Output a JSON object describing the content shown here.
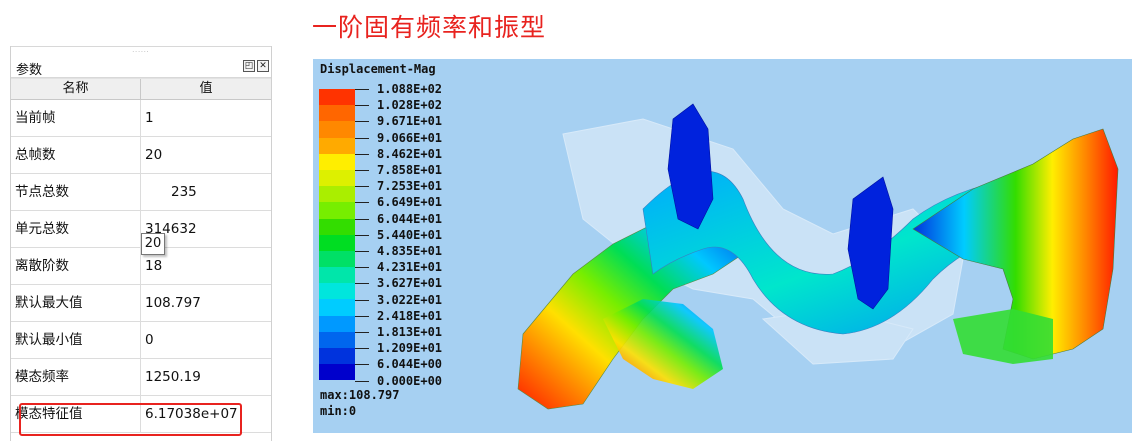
{
  "title": "一阶固有频率和振型",
  "panel": {
    "title": "参数",
    "grip": "......",
    "buttons": [
      "◰",
      "✕"
    ],
    "headers": [
      "名称",
      "值"
    ],
    "rows": [
      {
        "name": "当前帧",
        "value": "1"
      },
      {
        "name": "总帧数",
        "value": "20"
      },
      {
        "name": "节点总数",
        "value": "235"
      },
      {
        "name": "单元总数",
        "value": "314632"
      },
      {
        "name": "离散阶数",
        "value": "18"
      },
      {
        "name": "默认最大值",
        "value": "108.797"
      },
      {
        "name": "默认最小值",
        "value": "0"
      },
      {
        "name": "模态频率",
        "value": "1250.19"
      },
      {
        "name": "模态特征值",
        "value": "6.17038e+07"
      }
    ],
    "tooltip": "20",
    "highlighted_row": "模态频率"
  },
  "viz": {
    "legend_title": "Displacement-Mag",
    "legend_labels": [
      "1.088E+02",
      "1.028E+02",
      "9.671E+01",
      "9.066E+01",
      "8.462E+01",
      "7.858E+01",
      "7.253E+01",
      "6.649E+01",
      "6.044E+01",
      "5.440E+01",
      "4.835E+01",
      "4.231E+01",
      "3.627E+01",
      "3.022E+01",
      "2.418E+01",
      "1.813E+01",
      "1.209E+01",
      "6.044E+00",
      "0.000E+00"
    ],
    "legend_colors": [
      "#ff0000",
      "#ff3300",
      "#ff6600",
      "#ff8800",
      "#ffaa00",
      "#ffee00",
      "#ddf000",
      "#aaee00",
      "#77ee00",
      "#33dd00",
      "#00dd22",
      "#00e066",
      "#00e6aa",
      "#00e6dd",
      "#00ccff",
      "#0099ff",
      "#0066ee",
      "#0033dd",
      "#0000cc"
    ],
    "max_text": "max:108.797",
    "min_text": "min:0",
    "background": "#a6d0f2"
  }
}
